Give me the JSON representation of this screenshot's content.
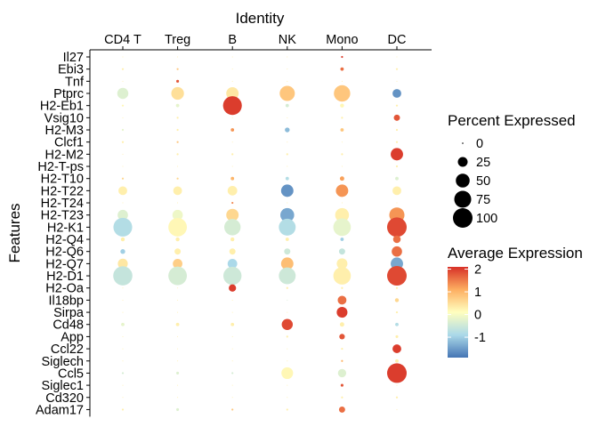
{
  "chart_data": {
    "type": "dotplot",
    "x_title": "Identity",
    "y_title": "Features",
    "categories": [
      "CD4 T",
      "Treg",
      "B",
      "NK",
      "Mono",
      "DC"
    ],
    "features": [
      "Il27",
      "Ebi3",
      "Tnf",
      "Ptprc",
      "H2-Eb1",
      "Vsig10",
      "H2-M3",
      "Clcf1",
      "H2-M2",
      "H2-T-ps",
      "H2-T10",
      "H2-T22",
      "H2-T24",
      "H2-T23",
      "H2-K1",
      "H2-Q4",
      "H2-Q6",
      "H2-Q7",
      "H2-D1",
      "H2-Oa",
      "Il18bp",
      "Sirpa",
      "Cd48",
      "App",
      "Ccl22",
      "Siglech",
      "Ccl5",
      "Siglec1",
      "Cd320",
      "Adam17"
    ],
    "pct": [
      [
        0,
        0,
        0,
        0,
        1,
        0
      ],
      [
        1,
        1,
        0,
        0,
        3,
        1
      ],
      [
        0,
        2,
        0,
        0,
        0,
        0
      ],
      [
        32,
        42,
        40,
        60,
        70,
        20
      ],
      [
        1,
        3,
        92,
        3,
        4,
        1
      ],
      [
        0,
        1,
        0,
        0,
        1,
        10
      ],
      [
        1,
        1,
        3,
        6,
        3,
        1
      ],
      [
        1,
        1,
        0,
        0,
        0,
        1
      ],
      [
        0,
        1,
        1,
        1,
        1,
        40
      ],
      [
        0,
        0,
        0,
        0,
        0,
        1
      ],
      [
        1,
        1,
        3,
        3,
        5,
        3
      ],
      [
        20,
        20,
        24,
        40,
        40,
        20
      ],
      [
        0,
        0,
        1,
        0,
        0,
        0
      ],
      [
        28,
        28,
        40,
        50,
        50,
        60
      ],
      [
        92,
        90,
        70,
        74,
        80,
        100
      ],
      [
        4,
        4,
        4,
        3,
        3,
        15
      ],
      [
        6,
        10,
        10,
        10,
        10,
        28
      ],
      [
        26,
        24,
        24,
        40,
        30,
        40
      ],
      [
        96,
        90,
        86,
        74,
        80,
        100
      ],
      [
        0,
        0,
        14,
        1,
        1,
        1
      ],
      [
        0,
        0,
        0,
        0,
        20,
        4
      ],
      [
        0,
        0,
        0,
        0,
        30,
        1
      ],
      [
        3,
        3,
        3,
        32,
        5,
        3
      ],
      [
        0,
        0,
        0,
        1,
        8,
        2
      ],
      [
        0,
        0,
        0,
        0,
        1,
        20
      ],
      [
        0,
        0,
        0,
        0,
        1,
        3
      ],
      [
        1,
        2,
        1,
        36,
        18,
        100
      ],
      [
        0,
        0,
        0,
        0,
        2,
        0
      ],
      [
        0,
        0,
        0,
        0,
        1,
        1
      ],
      [
        1,
        2,
        1,
        1,
        10,
        0
      ]
    ],
    "avg": [
      [
        0.3,
        0.3,
        0.3,
        0.3,
        2.0,
        0.3
      ],
      [
        0.3,
        0.8,
        0.3,
        0.3,
        1.6,
        0.3
      ],
      [
        0.3,
        1.8,
        0.3,
        0.3,
        0.3,
        0.3
      ],
      [
        -0.3,
        0.5,
        0.4,
        0.8,
        0.8,
        -1.6
      ],
      [
        0.2,
        -0.2,
        2.0,
        -0.4,
        0.2,
        0.3
      ],
      [
        0.3,
        0.3,
        0.3,
        0.3,
        0.3,
        1.8
      ],
      [
        -0.2,
        0.3,
        1.3,
        -1.2,
        0.8,
        0.3
      ],
      [
        0.3,
        0.8,
        0.3,
        0.3,
        0.3,
        0.3
      ],
      [
        0.3,
        0.3,
        0.3,
        0.3,
        0.3,
        2.0
      ],
      [
        0.3,
        0.3,
        0.3,
        0.3,
        0.3,
        0.3
      ],
      [
        0.6,
        0.6,
        1.0,
        -0.8,
        1.2,
        -0.3
      ],
      [
        0.3,
        0.3,
        0.3,
        -1.6,
        1.3,
        0.3
      ],
      [
        0.3,
        0.3,
        1.4,
        0.3,
        0.3,
        0.3
      ],
      [
        -0.3,
        -0.1,
        0.6,
        -1.4,
        0.3,
        1.3
      ],
      [
        -0.8,
        0.2,
        -0.4,
        -0.8,
        -0.2,
        1.9
      ],
      [
        0.3,
        0.3,
        0.3,
        0.3,
        -1.0,
        1.6
      ],
      [
        -1.0,
        0.3,
        0.3,
        -0.5,
        -0.6,
        1.6
      ],
      [
        0.4,
        0.7,
        -0.9,
        0.9,
        0.3,
        -1.4
      ],
      [
        -0.6,
        -0.4,
        -0.5,
        -0.5,
        0.3,
        1.9
      ],
      [
        0.3,
        0.3,
        2.0,
        0.3,
        0.3,
        0.3
      ],
      [
        0.3,
        0.3,
        0.3,
        -0.4,
        1.6,
        0.6
      ],
      [
        0.3,
        0.3,
        0.3,
        0.3,
        2.0,
        0.3
      ],
      [
        -0.2,
        0.3,
        0.3,
        1.9,
        0.3,
        -0.8
      ],
      [
        0.3,
        0.3,
        0.3,
        0.3,
        1.8,
        0.3
      ],
      [
        0.3,
        0.3,
        0.3,
        0.3,
        0.3,
        2.0
      ],
      [
        0.3,
        0.3,
        0.3,
        0.3,
        1.0,
        0.3
      ],
      [
        -0.4,
        -0.3,
        -0.4,
        0.2,
        -0.3,
        2.0
      ],
      [
        0.3,
        0.3,
        0.3,
        0.3,
        1.8,
        0.3
      ],
      [
        0.3,
        0.3,
        0.3,
        0.3,
        0.3,
        0.3
      ],
      [
        0.3,
        -0.3,
        0.8,
        0.3,
        1.6,
        0.3
      ]
    ],
    "size_legend": {
      "title": "Percent Expressed",
      "breaks": [
        0,
        25,
        50,
        75,
        100
      ],
      "labels": [
        "0",
        "25",
        "50",
        "75",
        "100"
      ]
    },
    "color_legend": {
      "title": "Average Expression",
      "range": [
        -1.9,
        2.1
      ],
      "breaks": [
        -1,
        0,
        1,
        2
      ],
      "labels": [
        "-1",
        "0",
        "1",
        "2"
      ],
      "colors": [
        "#4575b4",
        "#abd9e9",
        "#ffffbf",
        "#fdae61",
        "#d73027"
      ]
    }
  }
}
